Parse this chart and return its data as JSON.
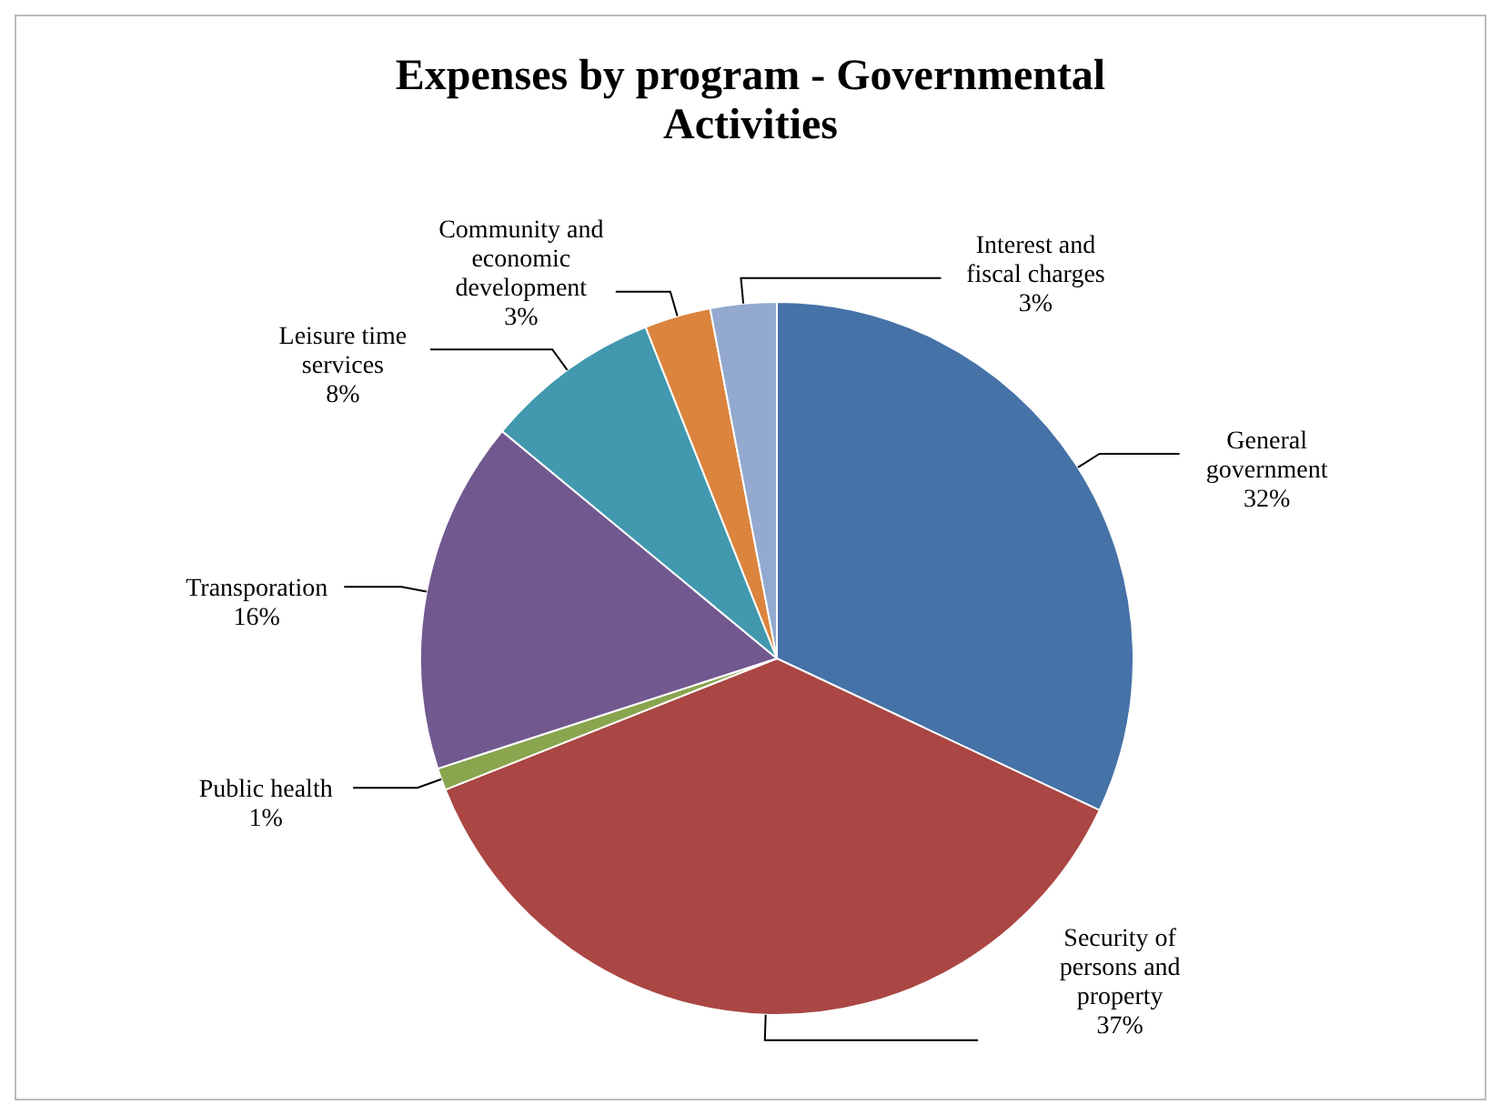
{
  "chart_data": {
    "type": "pie",
    "title": "Expenses by program - Governmental Activities",
    "categories": [
      "General government",
      "Security of persons and property",
      "Public health",
      "Transporation",
      "Leisure time services",
      "Community and economic development",
      "Interest and fiscal charges"
    ],
    "values": [
      32,
      37,
      1,
      16,
      8,
      3,
      3
    ],
    "value_labels": [
      "32%",
      "37%",
      "1%",
      "16%",
      "8%",
      "3%",
      "3%"
    ],
    "colors": [
      "#4572a7",
      "#aa4643",
      "#89a54e",
      "#71588f",
      "#4198af",
      "#db843d",
      "#93a9cf"
    ],
    "legend": false
  }
}
